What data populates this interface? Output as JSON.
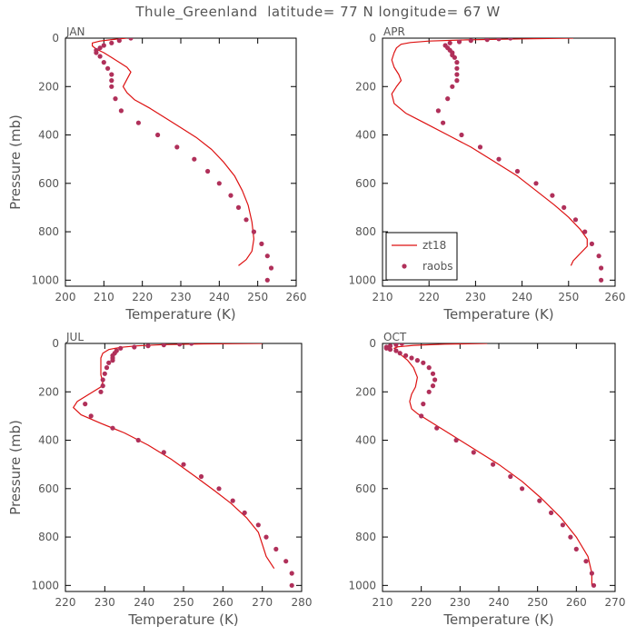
{
  "title": "Thule_Greenland  latitude= 77 N longitude= 67 W",
  "colors": {
    "model": "#dd1111",
    "obs": "#b0305a",
    "axis": "#000000",
    "text": "#555555"
  },
  "legend": {
    "model_label": "zt18",
    "obs_label": "raobs"
  },
  "chart_data": [
    {
      "type": "line",
      "panel": "JAN",
      "xlabel": "Temperature (K)",
      "ylabel": "Pressure (mb)",
      "xlim": [
        200,
        260
      ],
      "ylim": [
        1025,
        0
      ],
      "xticks": [
        200,
        210,
        220,
        230,
        240,
        250,
        260
      ],
      "yticks": [
        0,
        200,
        400,
        600,
        800,
        1000
      ],
      "series": [
        {
          "name": "zt18",
          "kind": "line",
          "points": [
            [
              216,
              0
            ],
            [
              212,
              6
            ],
            [
              209,
              12
            ],
            [
              207,
              20
            ],
            [
              207,
              32
            ],
            [
              208,
              45
            ],
            [
              210,
              60
            ],
            [
              212,
              80
            ],
            [
              214,
              100
            ],
            [
              216,
              120
            ],
            [
              217,
              140
            ],
            [
              216,
              170
            ],
            [
              215,
              200
            ],
            [
              216,
              225
            ],
            [
              218,
              255
            ],
            [
              222,
              290
            ],
            [
              226,
              330
            ],
            [
              230,
              370
            ],
            [
              234,
              410
            ],
            [
              238,
              460
            ],
            [
              241,
              510
            ],
            [
              244,
              570
            ],
            [
              246,
              630
            ],
            [
              247.5,
              690
            ],
            [
              248.5,
              760
            ],
            [
              249,
              830
            ],
            [
              248.5,
              880
            ],
            [
              247,
              915
            ],
            [
              245,
              940
            ]
          ]
        },
        {
          "name": "raobs",
          "kind": "scatter",
          "points": [
            [
              217,
              0
            ],
            [
              214,
              10
            ],
            [
              212,
              20
            ],
            [
              210,
              30
            ],
            [
              209,
              40
            ],
            [
              208,
              50
            ],
            [
              208,
              60
            ],
            [
              209,
              75
            ],
            [
              210,
              100
            ],
            [
              211,
              125
            ],
            [
              212,
              150
            ],
            [
              212,
              175
            ],
            [
              212,
              200
            ],
            [
              213,
              250
            ],
            [
              214.5,
              300
            ],
            [
              219,
              350
            ],
            [
              224,
              400
            ],
            [
              229,
              450
            ],
            [
              233.5,
              500
            ],
            [
              237,
              550
            ],
            [
              240,
              600
            ],
            [
              243,
              650
            ],
            [
              245,
              700
            ],
            [
              247,
              750
            ],
            [
              249,
              800
            ],
            [
              251,
              850
            ],
            [
              252.5,
              900
            ],
            [
              253.5,
              950
            ],
            [
              252.5,
              1000
            ]
          ]
        }
      ]
    },
    {
      "type": "line",
      "panel": "APR",
      "xlabel": "Temperature (K)",
      "ylabel": "",
      "xlim": [
        210,
        260
      ],
      "ylim": [
        1025,
        0
      ],
      "xticks": [
        210,
        220,
        230,
        240,
        250,
        260
      ],
      "yticks": [
        0,
        200,
        400,
        600,
        800,
        1000
      ],
      "series": [
        {
          "name": "zt18",
          "kind": "line",
          "points": [
            [
              251,
              0
            ],
            [
              240,
              3
            ],
            [
              228,
              7
            ],
            [
              220,
              12
            ],
            [
              216,
              18
            ],
            [
              214,
              25
            ],
            [
              213,
              40
            ],
            [
              212.5,
              60
            ],
            [
              212,
              90
            ],
            [
              212.5,
              120
            ],
            [
              213.5,
              150
            ],
            [
              214,
              175
            ],
            [
              213,
              200
            ],
            [
              212,
              230
            ],
            [
              212.5,
              270
            ],
            [
              215,
              310
            ],
            [
              219,
              350
            ],
            [
              224,
              400
            ],
            [
              229,
              450
            ],
            [
              234,
              510
            ],
            [
              239,
              570
            ],
            [
              243,
              630
            ],
            [
              247,
              690
            ],
            [
              250,
              740
            ],
            [
              252.5,
              790
            ],
            [
              254,
              830
            ],
            [
              254,
              860
            ],
            [
              252.5,
              890
            ],
            [
              251,
              920
            ],
            [
              250.5,
              940
            ]
          ]
        },
        {
          "name": "raobs",
          "kind": "scatter",
          "points": [
            [
              237.5,
              0
            ],
            [
              235,
              3
            ],
            [
              232.5,
              6
            ],
            [
              229,
              10
            ],
            [
              226.5,
              15
            ],
            [
              224.5,
              20
            ],
            [
              223.5,
              30
            ],
            [
              224,
              40
            ],
            [
              224.5,
              50
            ],
            [
              225,
              60
            ],
            [
              225,
              70
            ],
            [
              225.5,
              80
            ],
            [
              226,
              100
            ],
            [
              226,
              125
            ],
            [
              226,
              150
            ],
            [
              226,
              175
            ],
            [
              225,
              200
            ],
            [
              224,
              250
            ],
            [
              222,
              300
            ],
            [
              223,
              350
            ],
            [
              227,
              400
            ],
            [
              231,
              450
            ],
            [
              235,
              500
            ],
            [
              239,
              550
            ],
            [
              243,
              600
            ],
            [
              246.5,
              650
            ],
            [
              249,
              700
            ],
            [
              251.5,
              750
            ],
            [
              253.5,
              800
            ],
            [
              255,
              850
            ],
            [
              256.5,
              900
            ],
            [
              257,
              950
            ],
            [
              257,
              1000
            ]
          ]
        }
      ]
    },
    {
      "type": "line",
      "panel": "JUL",
      "xlabel": "Temperature (K)",
      "ylabel": "Pressure (mb)",
      "xlim": [
        220,
        280
      ],
      "ylim": [
        1025,
        0
      ],
      "xticks": [
        220,
        230,
        240,
        250,
        260,
        270,
        280
      ],
      "yticks": [
        0,
        200,
        400,
        600,
        800,
        1000
      ],
      "series": [
        {
          "name": "zt18",
          "kind": "line",
          "points": [
            [
              270,
              0
            ],
            [
              255,
              2
            ],
            [
              245,
              5
            ],
            [
              238,
              10
            ],
            [
              234,
              16
            ],
            [
              231,
              25
            ],
            [
              229.5,
              40
            ],
            [
              229,
              60
            ],
            [
              229,
              90
            ],
            [
              229,
              130
            ],
            [
              229.5,
              160
            ],
            [
              229,
              180
            ],
            [
              226,
              210
            ],
            [
              223,
              240
            ],
            [
              222,
              265
            ],
            [
              224,
              295
            ],
            [
              229,
              330
            ],
            [
              235,
              370
            ],
            [
              241,
              420
            ],
            [
              247,
              480
            ],
            [
              253,
              550
            ],
            [
              258,
              610
            ],
            [
              262,
              660
            ],
            [
              266,
              720
            ],
            [
              269,
              780
            ],
            [
              270,
              830
            ],
            [
              271,
              880
            ],
            [
              273,
              930
            ]
          ]
        },
        {
          "name": "raobs",
          "kind": "scatter",
          "points": [
            [
              252,
              0
            ],
            [
              249,
              3
            ],
            [
              245,
              6
            ],
            [
              241,
              10
            ],
            [
              237.5,
              15
            ],
            [
              234,
              20
            ],
            [
              233,
              30
            ],
            [
              232.5,
              40
            ],
            [
              232,
              50
            ],
            [
              232,
              60
            ],
            [
              232,
              70
            ],
            [
              231,
              80
            ],
            [
              230.5,
              100
            ],
            [
              230,
              125
            ],
            [
              229.5,
              150
            ],
            [
              229.5,
              175
            ],
            [
              229,
              200
            ],
            [
              225,
              250
            ],
            [
              226.5,
              300
            ],
            [
              232,
              350
            ],
            [
              238.5,
              400
            ],
            [
              245,
              450
            ],
            [
              250,
              500
            ],
            [
              254.5,
              550
            ],
            [
              259,
              600
            ],
            [
              262.5,
              650
            ],
            [
              265.5,
              700
            ],
            [
              269,
              750
            ],
            [
              271,
              800
            ],
            [
              273.5,
              850
            ],
            [
              276,
              900
            ],
            [
              277.5,
              950
            ],
            [
              277.5,
              1000
            ]
          ]
        }
      ]
    },
    {
      "type": "line",
      "panel": "OCT",
      "xlabel": "Temperature (K)",
      "ylabel": "",
      "xlim": [
        210,
        270
      ],
      "ylim": [
        1025,
        0
      ],
      "xticks": [
        210,
        220,
        230,
        240,
        250,
        260,
        270
      ],
      "yticks": [
        0,
        200,
        400,
        600,
        800,
        1000
      ],
      "series": [
        {
          "name": "zt18",
          "kind": "line",
          "points": [
            [
              237,
              0
            ],
            [
              226,
              3
            ],
            [
              218,
              8
            ],
            [
              214,
              14
            ],
            [
              213,
              20
            ],
            [
              214,
              35
            ],
            [
              215,
              50
            ],
            [
              216.5,
              70
            ],
            [
              218,
              100
            ],
            [
              219,
              140
            ],
            [
              218.5,
              180
            ],
            [
              217.5,
              210
            ],
            [
              217,
              240
            ],
            [
              217.5,
              270
            ],
            [
              219,
              290
            ],
            [
              222,
              320
            ],
            [
              227,
              370
            ],
            [
              233,
              430
            ],
            [
              240,
              500
            ],
            [
              246,
              570
            ],
            [
              251,
              640
            ],
            [
              256,
              720
            ],
            [
              260,
              800
            ],
            [
              263,
              880
            ],
            [
              264,
              950
            ],
            [
              264,
              1000
            ]
          ]
        },
        {
          "name": "raobs",
          "kind": "scatter",
          "points": [
            [
              215,
              0
            ],
            [
              213.5,
              5
            ],
            [
              212,
              10
            ],
            [
              211,
              15
            ],
            [
              211,
              20
            ],
            [
              212,
              25
            ],
            [
              213.5,
              30
            ],
            [
              214.5,
              40
            ],
            [
              216,
              50
            ],
            [
              217.5,
              60
            ],
            [
              219,
              70
            ],
            [
              220.5,
              80
            ],
            [
              222,
              100
            ],
            [
              223,
              125
            ],
            [
              223.5,
              150
            ],
            [
              223,
              175
            ],
            [
              222,
              200
            ],
            [
              220.5,
              250
            ],
            [
              220,
              300
            ],
            [
              224,
              350
            ],
            [
              229,
              400
            ],
            [
              233.5,
              450
            ],
            [
              238.5,
              500
            ],
            [
              243,
              550
            ],
            [
              246,
              600
            ],
            [
              250.5,
              650
            ],
            [
              253.5,
              700
            ],
            [
              256.5,
              750
            ],
            [
              258.5,
              800
            ],
            [
              260,
              850
            ],
            [
              262.5,
              900
            ],
            [
              264,
              950
            ],
            [
              264.5,
              1000
            ]
          ]
        }
      ]
    }
  ]
}
